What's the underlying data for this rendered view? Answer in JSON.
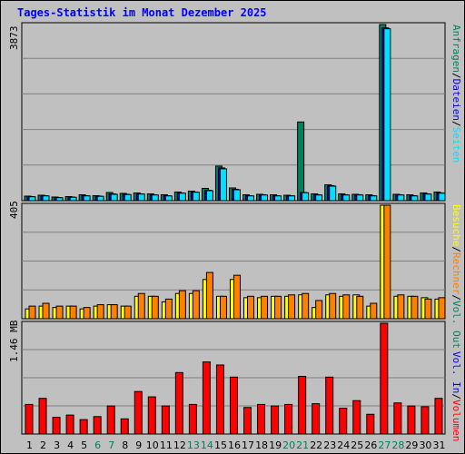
{
  "title": "Tages-Statistik im Monat Dezember 2025",
  "colors": {
    "hits": "#00805c",
    "files": "#00e0ff",
    "pages": "#00e0ff",
    "visits": "#ffff00",
    "sites": "#ff8000",
    "kbytes": "#ff0000",
    "weekend_label": "#00805c",
    "weekday_label": "#000000",
    "panel_bg": "#c0c0c0",
    "plot_bg": "#c0c0c0",
    "grid": "#808080"
  },
  "x_labels": [
    "1",
    "2",
    "3",
    "4",
    "5",
    "6",
    "7",
    "8",
    "9",
    "10",
    "11",
    "12",
    "13",
    "14",
    "15",
    "16",
    "17",
    "18",
    "19",
    "20",
    "21",
    "22",
    "23",
    "24",
    "25",
    "26",
    "27",
    "28",
    "29",
    "30",
    "31"
  ],
  "weekend_days": [
    6,
    7,
    13,
    14,
    20,
    21,
    27,
    28
  ],
  "legend_top": [
    {
      "text": "Anfragen",
      "color": "#00805c"
    },
    {
      "text": "/",
      "color": "#000000"
    },
    {
      "text": "Dateien",
      "color": "#0000ff"
    },
    {
      "text": "/",
      "color": "#000000"
    },
    {
      "text": "Seiten",
      "color": "#00e0ff"
    }
  ],
  "legend_mid": [
    {
      "text": "Besuche",
      "color": "#ffff00"
    },
    {
      "text": "/",
      "color": "#000000"
    },
    {
      "text": "Rechner",
      "color": "#ff8000"
    },
    {
      "text": "/",
      "color": "#000000"
    },
    {
      "text": "Vol. Out",
      "color": "#00805c"
    }
  ],
  "legend_bot": [
    {
      "text": "Vol. In",
      "color": "#0000ff"
    },
    {
      "text": "/",
      "color": "#000000"
    },
    {
      "text": "Volumen",
      "color": "#ff0000"
    }
  ],
  "chart_data": [
    {
      "type": "bar",
      "title": "Anfragen / Dateien / Seiten",
      "ymax_label": "3873",
      "ylim": [
        0,
        3873
      ],
      "series": [
        {
          "name": "Anfragen",
          "color": "#00805c",
          "values": [
            100,
            120,
            80,
            90,
            130,
            110,
            180,
            160,
            170,
            150,
            130,
            190,
            210,
            270,
            760,
            280,
            130,
            140,
            130,
            120,
            1730,
            150,
            350,
            150,
            140,
            130,
            3873,
            140,
            130,
            170,
            190
          ]
        },
        {
          "name": "Dateien",
          "color": "#0000ff",
          "values": [
            90,
            110,
            70,
            80,
            110,
            100,
            150,
            140,
            150,
            130,
            110,
            170,
            190,
            230,
            720,
            250,
            110,
            130,
            110,
            110,
            180,
            130,
            330,
            130,
            130,
            110,
            3800,
            130,
            110,
            150,
            170
          ]
        },
        {
          "name": "Seiten",
          "color": "#00e0ff",
          "values": [
            85,
            105,
            65,
            75,
            105,
            95,
            140,
            135,
            145,
            125,
            105,
            165,
            185,
            220,
            700,
            240,
            105,
            125,
            105,
            105,
            175,
            125,
            320,
            125,
            125,
            105,
            3780,
            125,
            105,
            145,
            165
          ]
        }
      ]
    },
    {
      "type": "bar",
      "title": "Besuche / Rechner",
      "ymax_label": "405",
      "ylim": [
        0,
        405
      ],
      "series": [
        {
          "name": "Besuche",
          "color": "#ffff00",
          "values": [
            35,
            45,
            40,
            45,
            35,
            45,
            50,
            45,
            80,
            80,
            60,
            90,
            90,
            140,
            80,
            140,
            75,
            75,
            80,
            80,
            85,
            40,
            85,
            80,
            85,
            45,
            405,
            80,
            80,
            75,
            70
          ]
        },
        {
          "name": "Rechner",
          "color": "#ff8000",
          "values": [
            45,
            55,
            45,
            45,
            40,
            50,
            50,
            45,
            90,
            80,
            70,
            100,
            100,
            165,
            80,
            155,
            80,
            80,
            80,
            85,
            90,
            65,
            90,
            85,
            80,
            55,
            405,
            85,
            80,
            70,
            75
          ]
        }
      ]
    },
    {
      "type": "bar",
      "title": "Volumen",
      "ymax_label": "1.46 MB",
      "unit": "MB",
      "ylim": [
        0,
        1.46
      ],
      "series": [
        {
          "name": "Volumen",
          "color": "#ff0000",
          "values": [
            0.39,
            0.47,
            0.22,
            0.25,
            0.19,
            0.23,
            0.37,
            0.2,
            0.56,
            0.49,
            0.37,
            0.81,
            0.39,
            0.95,
            0.91,
            0.75,
            0.35,
            0.39,
            0.37,
            0.39,
            0.76,
            0.4,
            0.75,
            0.34,
            0.44,
            0.26,
            1.46,
            0.41,
            0.37,
            0.36,
            0.47
          ]
        }
      ]
    }
  ]
}
